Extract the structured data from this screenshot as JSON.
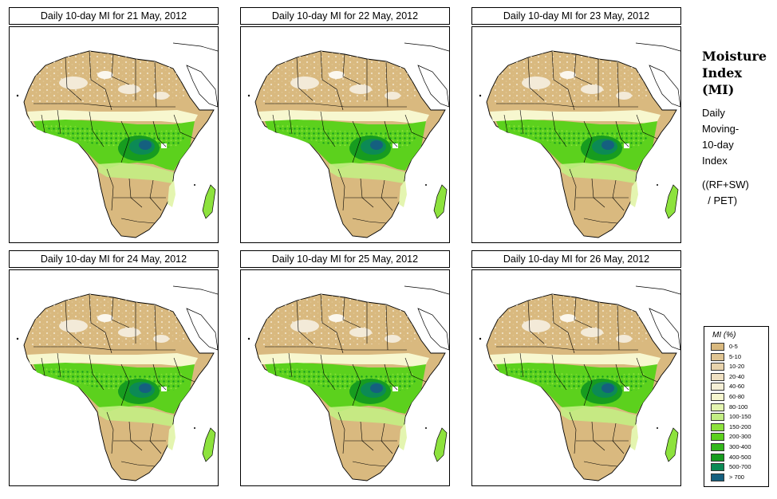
{
  "panels": [
    {
      "title": "Daily 10-day MI for  21 May, 2012"
    },
    {
      "title": "Daily 10-day MI for  22 May, 2012"
    },
    {
      "title": "Daily 10-day MI for  23 May, 2012"
    },
    {
      "title": "Daily 10-day MI for  24 May, 2012"
    },
    {
      "title": "Daily 10-day MI for  25 May, 2012"
    },
    {
      "title": "Daily 10-day MI for  26 May, 2012"
    }
  ],
  "side": {
    "title_lines": [
      "Moisture",
      "Index",
      "(MI)"
    ],
    "desc_lines": [
      "Daily",
      "Moving-",
      "10-day",
      "Index"
    ],
    "formula_lines": [
      "((RF+SW)",
      "  / PET)"
    ]
  },
  "legend": {
    "title": "MI (%)",
    "classes": [
      {
        "label": "0-5",
        "color": "#d9b97f"
      },
      {
        "label": "5-10",
        "color": "#e0c593"
      },
      {
        "label": "10-20",
        "color": "#e8d3ac"
      },
      {
        "label": "20-40",
        "color": "#efe0c2"
      },
      {
        "label": "40-60",
        "color": "#f5efd6"
      },
      {
        "label": "60-80",
        "color": "#f7f7cf"
      },
      {
        "label": "80-100",
        "color": "#e4f5b0"
      },
      {
        "label": "100-150",
        "color": "#c3ee84"
      },
      {
        "label": "150-200",
        "color": "#8de23d"
      },
      {
        "label": "200-300",
        "color": "#5cd11d"
      },
      {
        "label": "300-400",
        "color": "#33b81c"
      },
      {
        "label": "400-500",
        "color": "#179c1f"
      },
      {
        "label": "500-700",
        "color": "#0c8a55"
      },
      {
        "label": "> 700",
        "color": "#15607f"
      }
    ]
  }
}
